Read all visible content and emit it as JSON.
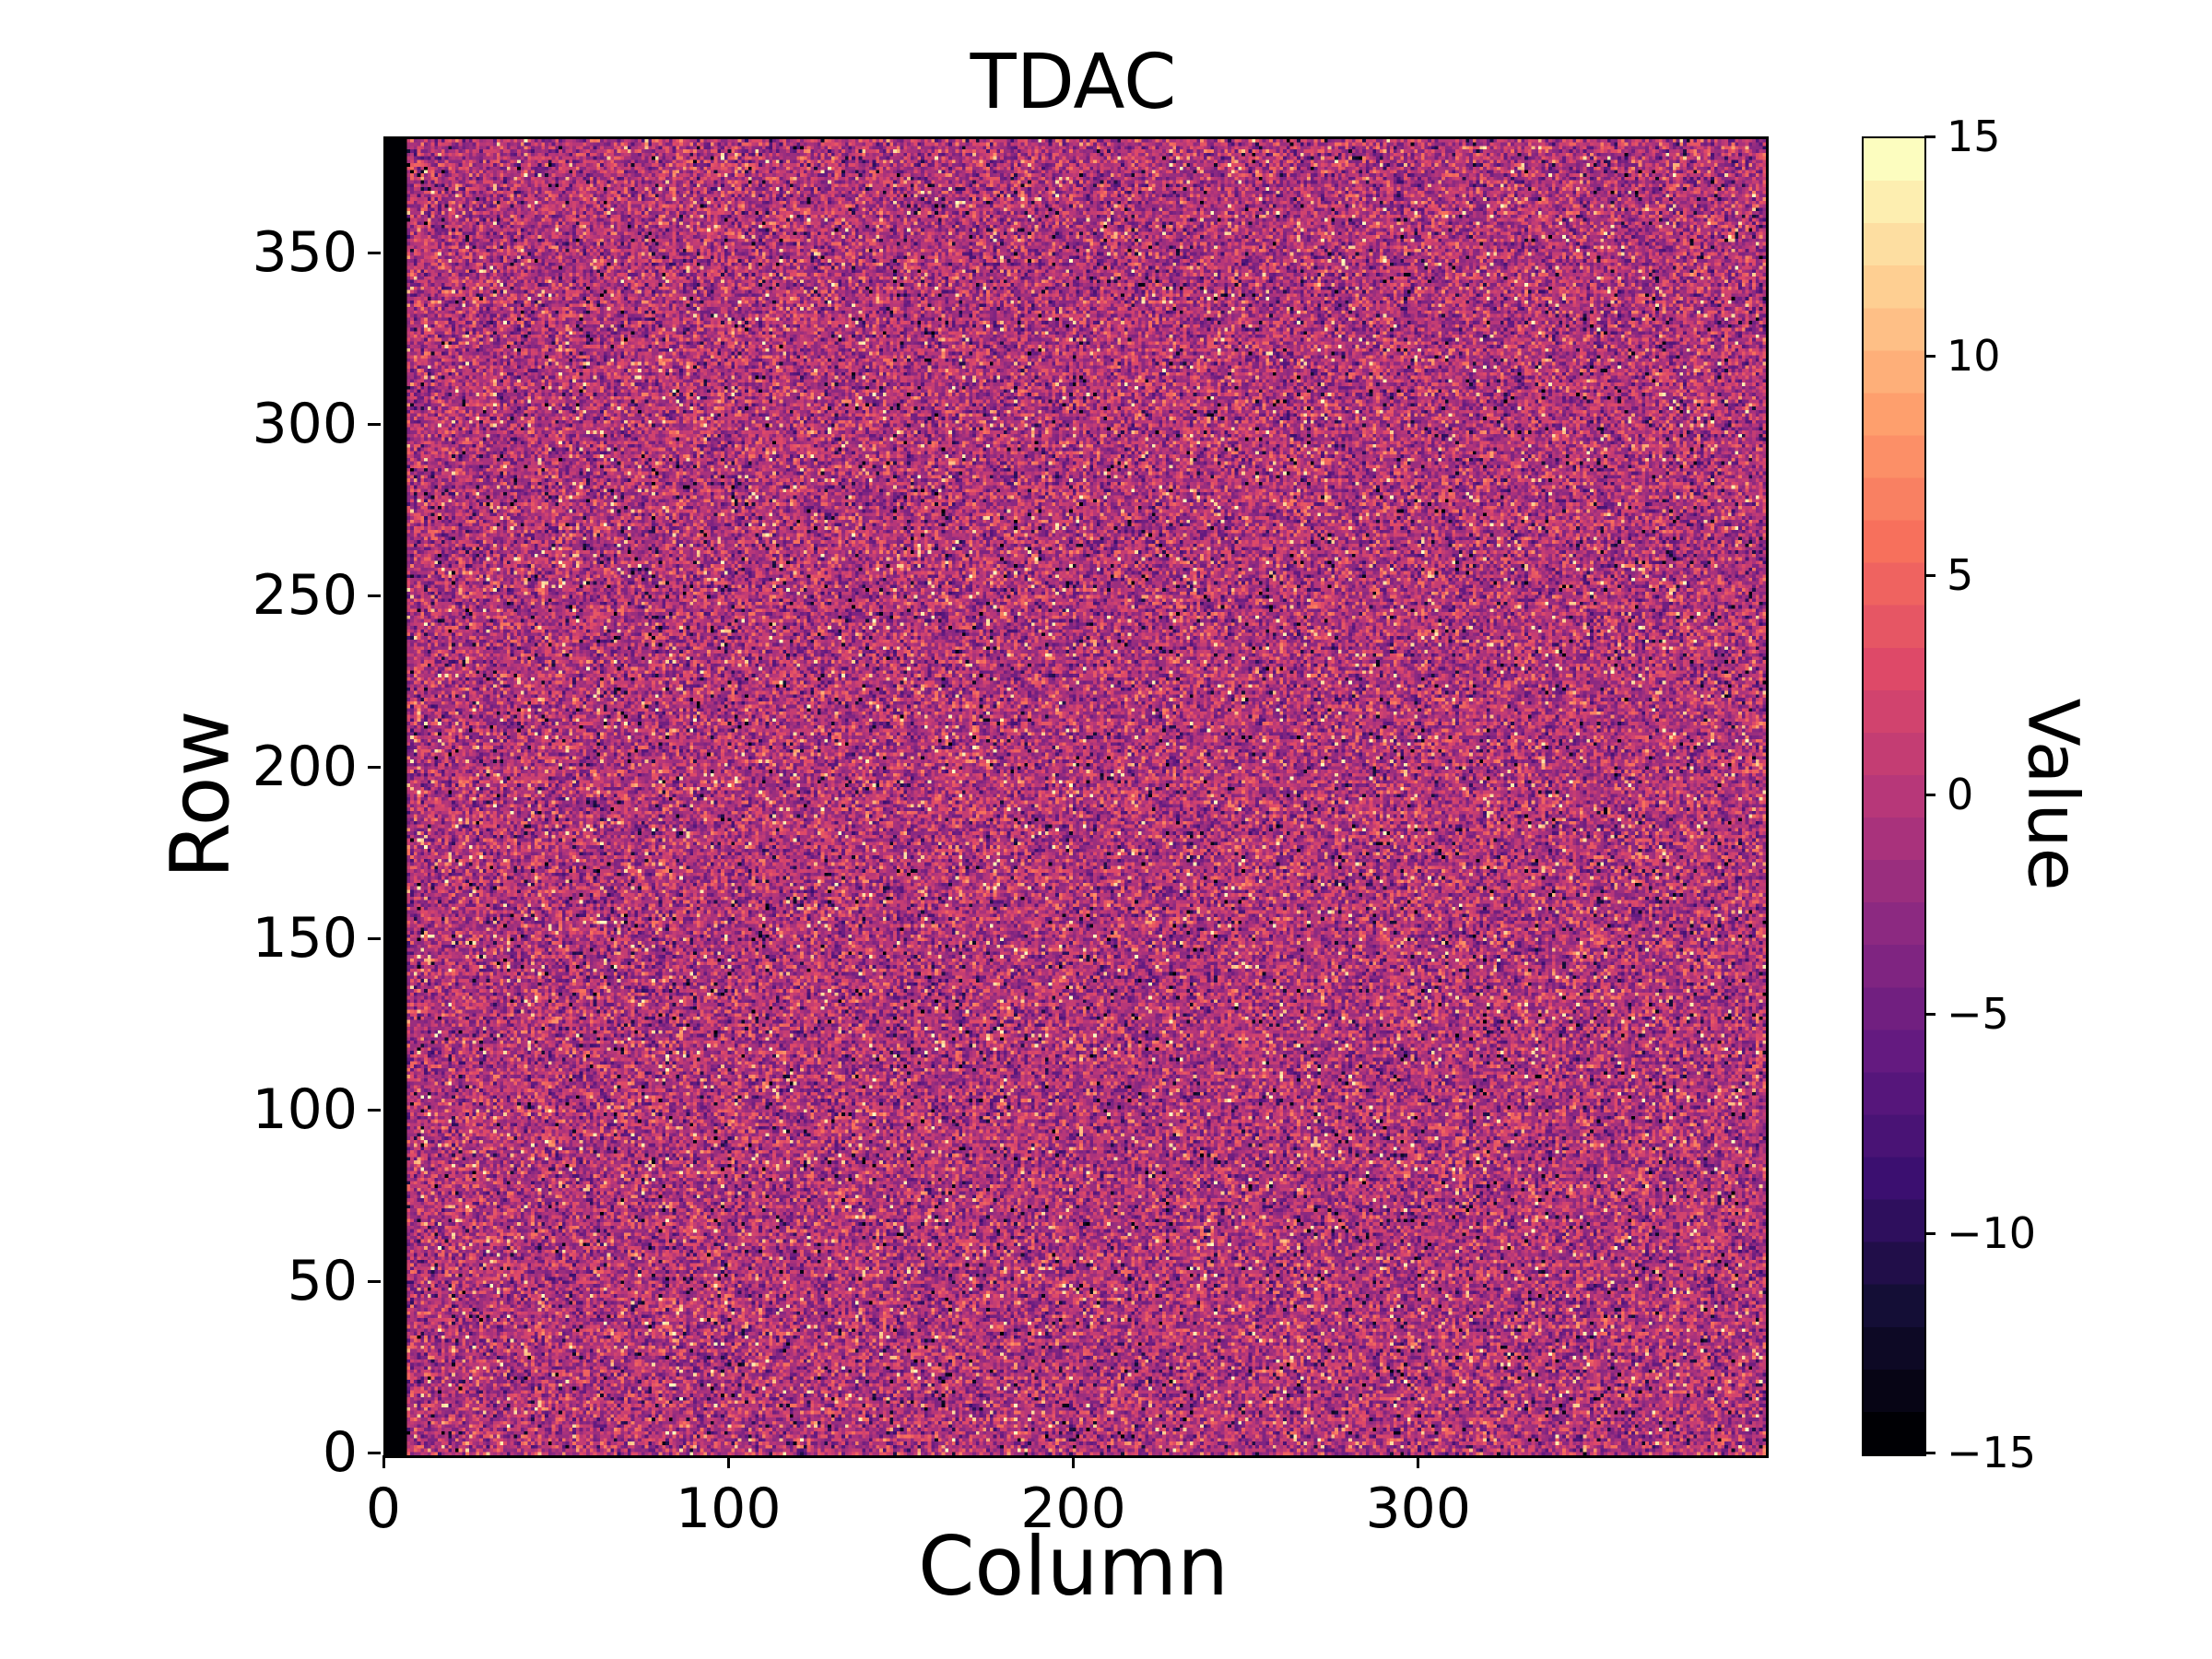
{
  "chart_data": {
    "type": "heatmap",
    "title": "TDAC",
    "xlabel": "Column",
    "ylabel": "Row",
    "colorbar_label": "Value",
    "x_range": [
      0,
      400
    ],
    "y_range": [
      0,
      384
    ],
    "value_range": [
      -15,
      15
    ],
    "x_ticks": [
      {
        "value": 0,
        "label": "0"
      },
      {
        "value": 100,
        "label": "100"
      },
      {
        "value": 200,
        "label": "200"
      },
      {
        "value": 300,
        "label": "300"
      }
    ],
    "y_ticks": [
      {
        "value": 0,
        "label": "0"
      },
      {
        "value": 50,
        "label": "50"
      },
      {
        "value": 100,
        "label": "100"
      },
      {
        "value": 150,
        "label": "150"
      },
      {
        "value": 200,
        "label": "200"
      },
      {
        "value": 250,
        "label": "250"
      },
      {
        "value": 300,
        "label": "300"
      },
      {
        "value": 350,
        "label": "350"
      }
    ],
    "colorbar_ticks": [
      {
        "value": 15,
        "label": "15"
      },
      {
        "value": 10,
        "label": "10"
      },
      {
        "value": 5,
        "label": "5"
      },
      {
        "value": 0,
        "label": "0"
      },
      {
        "value": -5,
        "label": "−5"
      },
      {
        "value": -10,
        "label": "−10"
      },
      {
        "value": -15,
        "label": "−15"
      }
    ],
    "colormap": "magma",
    "n_levels": 31,
    "grid": false,
    "colorbar_position": "right",
    "data_model": {
      "description": "Per-pixel TDAC trim map shown as dense random speckle: most values lie between -5 and +5 (magenta/pink), with scattered saturated bright pixels (+10..+15, orange/yellow) and dark pixels (-10..-15, near black). The leftmost few columns are uniformly -15, forming a solid black vertical stripe at column 0.",
      "distribution": "gaussian",
      "mean": -0.5,
      "std": 3.8,
      "outlier_fraction": 0.04,
      "black_left_columns": 6,
      "seed": 1234
    }
  }
}
